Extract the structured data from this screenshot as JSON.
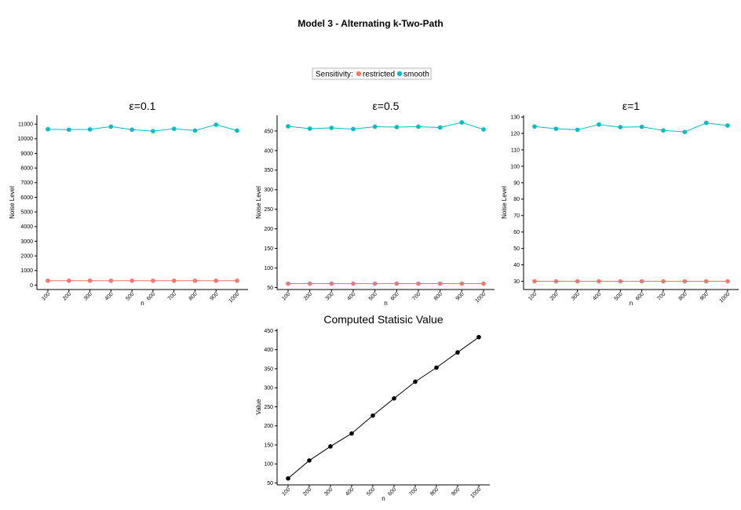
{
  "title": "Model 3 - Alternating k-Two-Path",
  "legend": {
    "label": "Sensitivity:",
    "items": [
      {
        "name": "restricted",
        "color": "#F8766D"
      },
      {
        "name": "smooth",
        "color": "#00BFC4"
      }
    ]
  },
  "chart_data": [
    {
      "type": "line",
      "title": "ε=0.1",
      "xlabel": "n",
      "ylabel": "Noise Level",
      "x": [
        100,
        200,
        300,
        400,
        500,
        600,
        700,
        800,
        900,
        1000
      ],
      "ylim": [
        -300,
        11600
      ],
      "yticks": [
        0,
        1000,
        2000,
        3000,
        4000,
        5000,
        6000,
        7000,
        8000,
        9000,
        10000,
        11000
      ],
      "series": [
        {
          "name": "restricted",
          "color": "#F8766D",
          "values": [
            300,
            300,
            300,
            300,
            300,
            300,
            300,
            300,
            300,
            300
          ]
        },
        {
          "name": "smooth",
          "color": "#00BFC4",
          "values": [
            10650,
            10620,
            10640,
            10830,
            10620,
            10520,
            10680,
            10560,
            10960,
            10560
          ]
        }
      ]
    },
    {
      "type": "line",
      "title": "ε=0.5",
      "xlabel": "n",
      "ylabel": "Noise Level",
      "x": [
        100,
        200,
        300,
        400,
        500,
        600,
        700,
        800,
        900,
        1000
      ],
      "ylim": [
        45,
        490
      ],
      "yticks": [
        50,
        100,
        150,
        200,
        250,
        300,
        350,
        400,
        450
      ],
      "series": [
        {
          "name": "restricted",
          "color": "#F8766D",
          "values": [
            60,
            60,
            60,
            60,
            60,
            60,
            60,
            60,
            60,
            60
          ]
        },
        {
          "name": "smooth",
          "color": "#00BFC4",
          "values": [
            462,
            456,
            458,
            455,
            461,
            460,
            461,
            459,
            472,
            454
          ]
        }
      ]
    },
    {
      "type": "line",
      "title": "ε=1",
      "xlabel": "n",
      "ylabel": "Noise Level",
      "x": [
        100,
        200,
        300,
        400,
        500,
        600,
        700,
        800,
        900,
        1000
      ],
      "ylim": [
        25,
        131
      ],
      "yticks": [
        30,
        40,
        50,
        60,
        70,
        80,
        90,
        100,
        110,
        120,
        130
      ],
      "series": [
        {
          "name": "restricted",
          "color": "#F8766D",
          "values": [
            30,
            30,
            30,
            30,
            30,
            30,
            30,
            30,
            30,
            30
          ]
        },
        {
          "name": "smooth",
          "color": "#00BFC4",
          "values": [
            124.2,
            122.8,
            122.2,
            125.4,
            123.8,
            124,
            121.8,
            120.9,
            126.4,
            124.8
          ]
        }
      ]
    },
    {
      "type": "line",
      "title": "Computed Statisic Value",
      "xlabel": "n",
      "ylabel": "Value",
      "x": [
        100,
        200,
        300,
        400,
        500,
        600,
        700,
        800,
        900,
        1000
      ],
      "ylim": [
        45,
        455
      ],
      "yticks": [
        50,
        100,
        150,
        200,
        250,
        300,
        350,
        400,
        450
      ],
      "series": [
        {
          "name": "",
          "color": "#000000",
          "values": [
            62,
            109,
            146,
            180,
            227,
            272,
            316,
            353,
            393,
            433
          ]
        }
      ]
    }
  ]
}
